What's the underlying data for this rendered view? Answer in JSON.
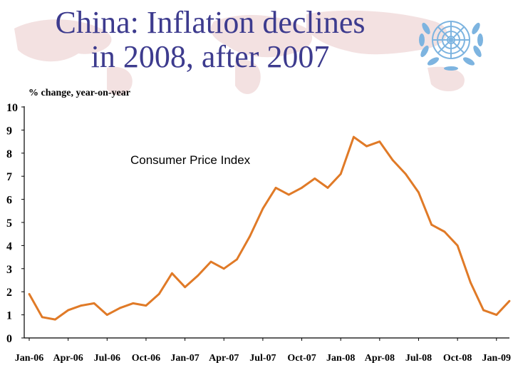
{
  "slide": {
    "title_line1": "China: Inflation declines",
    "title_line2": "in 2008, after 2007"
  },
  "colors": {
    "title": "#3d3b8e",
    "line": "#e07a27",
    "emblem": "#7db4e0",
    "map": "#f2dede"
  },
  "icons": {
    "emblem": "un-emblem-icon"
  },
  "chart_data": {
    "type": "line",
    "ylabel": "% change, year-on-year",
    "ylim": [
      0,
      10
    ],
    "yticks": [
      "0",
      "1",
      "2",
      "3",
      "4",
      "5",
      "6",
      "7",
      "8",
      "9",
      "10"
    ],
    "xticks": [
      "Jan-06",
      "Apr-06",
      "Jul-06",
      "Oct-06",
      "Jan-07",
      "Apr-07",
      "Jul-07",
      "Oct-07",
      "Jan-08",
      "Apr-08",
      "Jul-08",
      "Oct-08",
      "Jan-09"
    ],
    "x": [
      "Jan-06",
      "Feb-06",
      "Mar-06",
      "Apr-06",
      "May-06",
      "Jun-06",
      "Jul-06",
      "Aug-06",
      "Sep-06",
      "Oct-06",
      "Nov-06",
      "Dec-06",
      "Jan-07",
      "Feb-07",
      "Mar-07",
      "Apr-07",
      "May-07",
      "Jun-07",
      "Jul-07",
      "Aug-07",
      "Sep-07",
      "Oct-07",
      "Nov-07",
      "Dec-07",
      "Jan-08",
      "Feb-08",
      "Mar-08",
      "Apr-08",
      "May-08",
      "Jun-08",
      "Jul-08",
      "Aug-08",
      "Sep-08",
      "Oct-08",
      "Nov-08",
      "Dec-08",
      "Jan-09",
      "Feb-09"
    ],
    "series": [
      {
        "name": "Consumer Price Index",
        "values": [
          1.9,
          0.9,
          0.8,
          1.2,
          1.4,
          1.5,
          1.0,
          1.3,
          1.5,
          1.4,
          1.9,
          2.8,
          2.2,
          2.7,
          3.3,
          3.0,
          3.4,
          4.4,
          5.6,
          6.5,
          6.2,
          6.5,
          6.9,
          6.5,
          7.1,
          8.7,
          8.3,
          8.5,
          7.7,
          7.1,
          6.3,
          4.9,
          4.6,
          4.0,
          2.4,
          1.2,
          1.0,
          1.6
        ]
      }
    ],
    "grid": false,
    "legend": "none"
  }
}
